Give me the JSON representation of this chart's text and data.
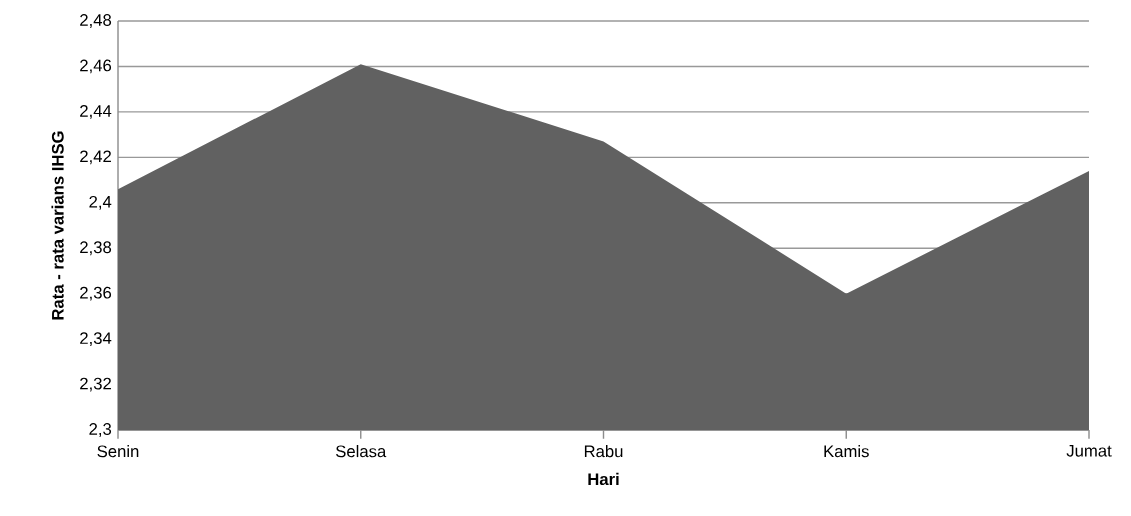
{
  "chart_data": {
    "type": "area",
    "xlabel": "Hari",
    "ylabel": "Rata - rata varians IHSG",
    "categories": [
      "Senin",
      "Selasa",
      "Rabu",
      "Kamis",
      "Jumat"
    ],
    "values": [
      2.406,
      2.461,
      2.427,
      2.36,
      2.414
    ],
    "color": "#616161",
    "ylim": [
      2.3,
      2.48
    ],
    "yticks": [
      {
        "value": 2.3,
        "label": "2,3"
      },
      {
        "value": 2.32,
        "label": "2,32"
      },
      {
        "value": 2.34,
        "label": "2,34"
      },
      {
        "value": 2.36,
        "label": "2,36"
      },
      {
        "value": 2.38,
        "label": "2,38"
      },
      {
        "value": 2.4,
        "label": "2,4"
      },
      {
        "value": 2.42,
        "label": "2,42"
      },
      {
        "value": 2.44,
        "label": "2,44"
      },
      {
        "value": 2.46,
        "label": "2,46"
      },
      {
        "value": 2.48,
        "label": "2,48"
      }
    ],
    "grid": "y"
  }
}
